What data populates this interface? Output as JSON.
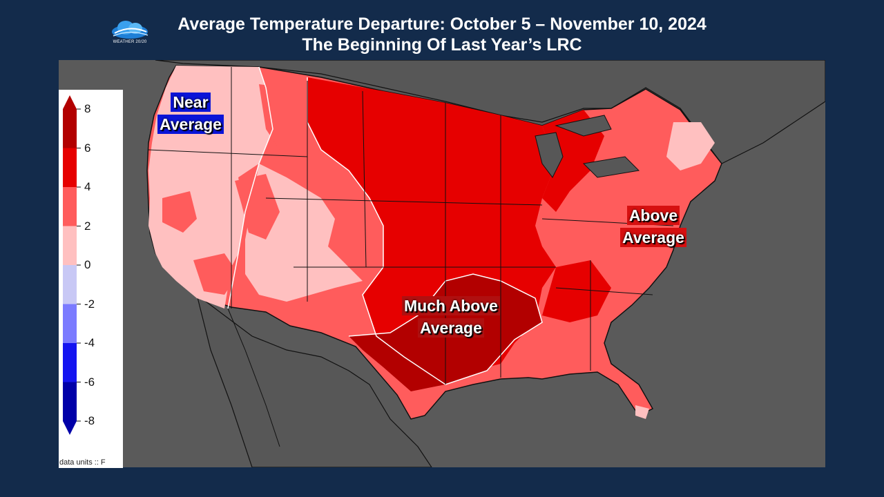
{
  "title": {
    "line1": "Average Temperature Departure: October 5 – November 10, 2024",
    "line2": "The Beginning Of Last Year’s LRC"
  },
  "logo": {
    "text": "WEATHER 20/20",
    "icon": "cloud-logo-icon"
  },
  "legend": {
    "ticks": [
      "8",
      "6",
      "4",
      "2",
      "0",
      "-2",
      "-4",
      "-6",
      "-8"
    ],
    "colors": [
      "#b20000",
      "#e60000",
      "#ff5c5c",
      "#ffc0c0",
      "#c8c8f5",
      "#7b7bff",
      "#1414f0",
      "#0000a8"
    ],
    "units": "data units :: F"
  },
  "map_labels": {
    "near": [
      "Near",
      "Average"
    ],
    "above": [
      "Above",
      "Average"
    ],
    "much": [
      "Much Above",
      "Average"
    ]
  },
  "colors": {
    "background": "#132b4b",
    "map_gray": "#5a5a5a",
    "near": "#ffc0c0",
    "above": "#ff5c5c",
    "warm": "#e60000",
    "much": "#b20000"
  }
}
